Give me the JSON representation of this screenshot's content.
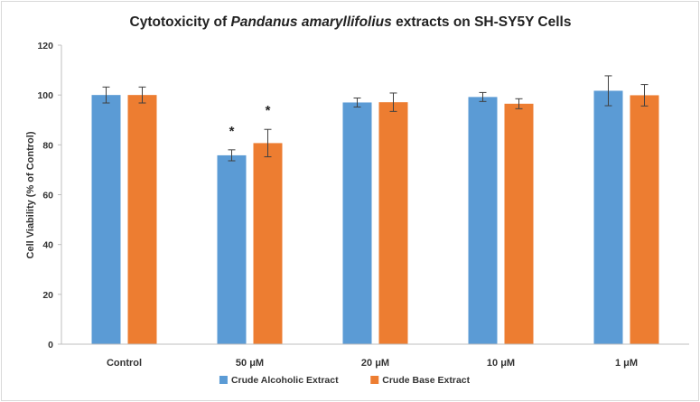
{
  "chart_data": {
    "type": "bar",
    "title_parts": [
      "Cytotoxicity of ",
      "Pandanus amaryllifolius",
      " extracts on SH-SY5Y Cells"
    ],
    "xlabel": "",
    "ylabel": "Cell Viability (% of Control)",
    "ylim": [
      0,
      120
    ],
    "yticks": [
      0,
      20,
      40,
      60,
      80,
      100,
      120
    ],
    "categories": [
      "Control",
      "50 μM",
      "20 μM",
      "10 μM",
      "1 μM"
    ],
    "series": [
      {
        "name": "Crude Alcoholic Extract",
        "color": "#5b9bd5",
        "values": [
          100,
          75.8,
          97,
          99.2,
          101.7
        ],
        "errors": [
          3.2,
          2.2,
          1.8,
          1.8,
          6.0
        ],
        "annotations": [
          "",
          "*",
          "",
          "",
          ""
        ]
      },
      {
        "name": "Crude Base Extract",
        "color": "#ed7d31",
        "values": [
          100,
          80.7,
          97.1,
          96.5,
          99.9
        ],
        "errors": [
          3.2,
          5.5,
          3.7,
          2.0,
          4.3
        ],
        "annotations": [
          "",
          "*",
          "",
          "",
          ""
        ]
      }
    ],
    "legend_position": "bottom",
    "grid": false
  }
}
